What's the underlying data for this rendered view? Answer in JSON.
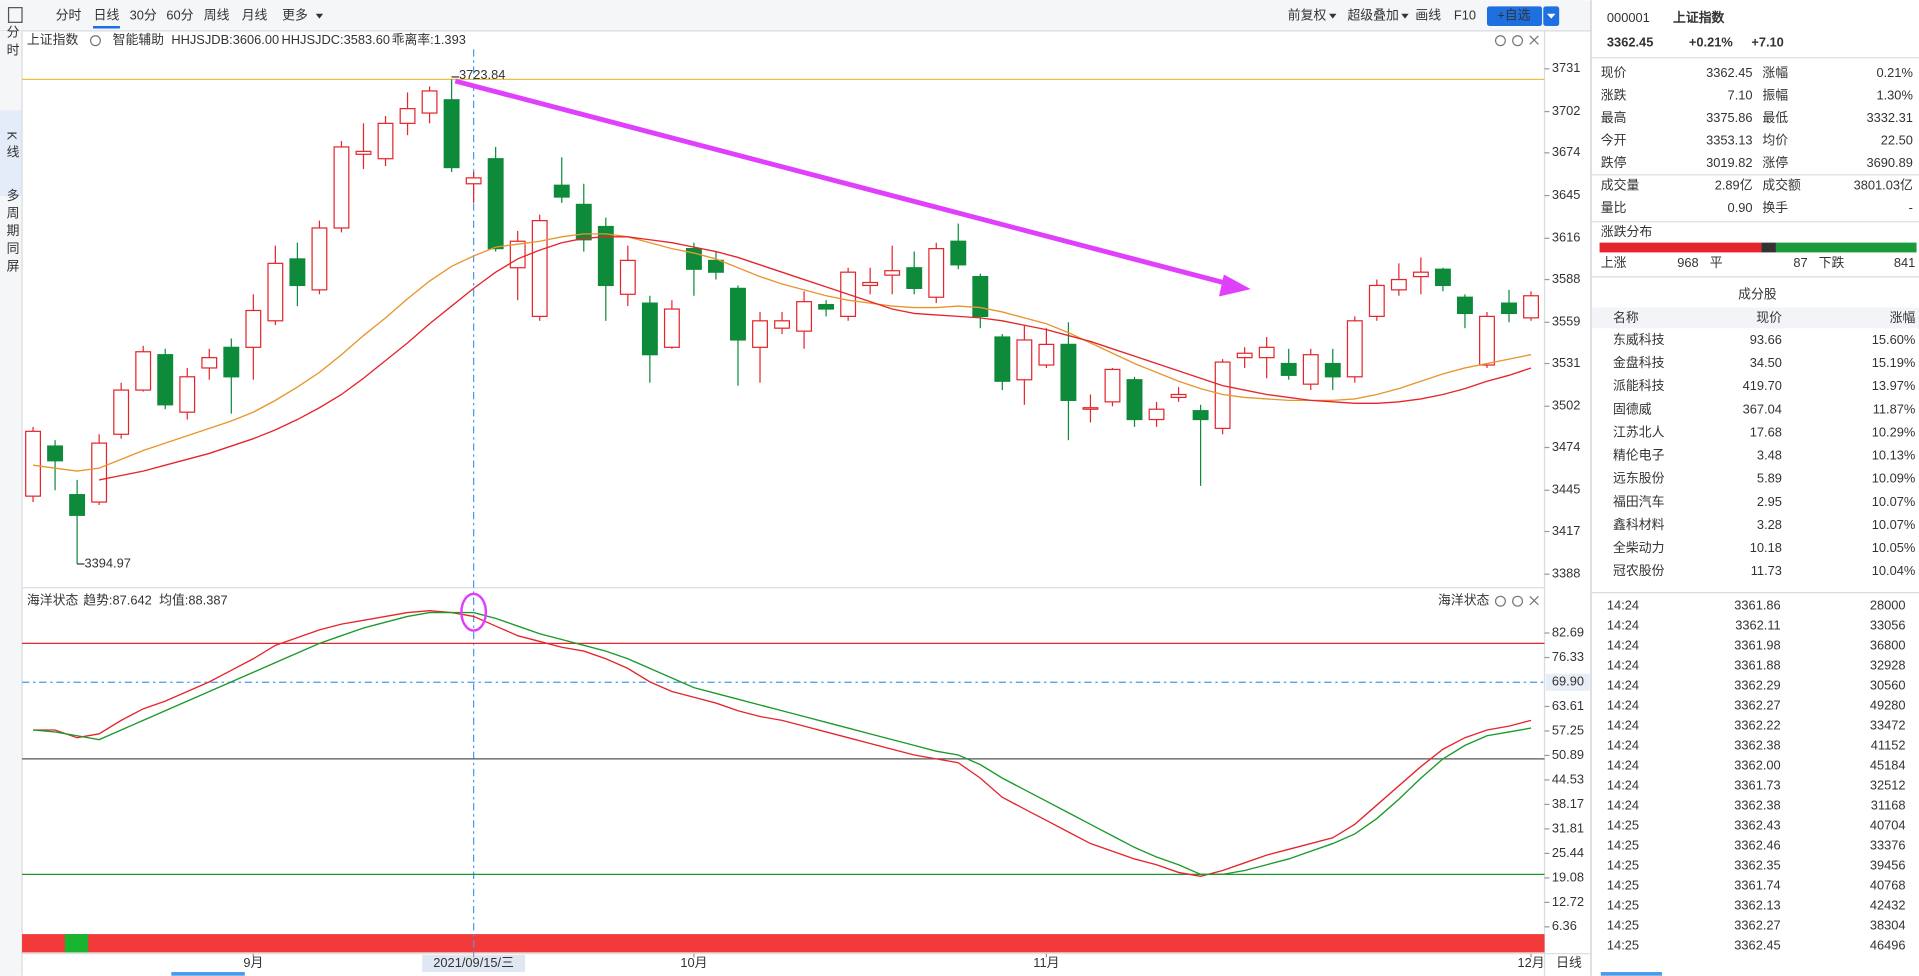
{
  "toolbar": {
    "left": [
      "分时",
      "日线",
      "30分",
      "60分",
      "周线",
      "月线",
      "更多"
    ],
    "right": [
      "前复权",
      "超级叠加",
      "画线",
      "F10"
    ],
    "add_button": "+自选"
  },
  "sidebar_tabs": [
    "分时",
    "K线",
    "多周期同屏"
  ],
  "chart_data": [
    {
      "type": "candlestick",
      "title": "上证指数",
      "subtitle": "智能辅助",
      "annotations": [
        "乖离率:1.393"
      ],
      "up_color": "#e4262c",
      "down_color": "#0d8a3a",
      "categories": [
        null,
        null,
        null,
        null,
        null,
        null,
        null,
        null,
        null,
        null,
        "9月",
        null,
        null,
        null,
        null,
        null,
        null,
        null,
        null,
        null,
        "2021/09/15/三",
        null,
        null,
        null,
        null,
        null,
        null,
        null,
        null,
        null,
        "10月",
        null,
        null,
        null,
        null,
        null,
        null,
        null,
        null,
        null,
        null,
        null,
        null,
        null,
        null,
        null,
        "11月",
        null,
        null,
        null,
        null,
        null,
        null,
        null,
        null,
        null,
        null,
        null,
        null,
        null,
        null,
        null,
        null,
        null,
        null,
        null,
        null,
        null,
        "12月"
      ],
      "open": [
        3441,
        3475,
        3442,
        3437,
        3483,
        3513,
        3537,
        3498,
        3528,
        3542,
        3542,
        3560,
        3602,
        3581,
        3623,
        3673,
        3670,
        3694,
        3701,
        3710,
        3653,
        3670,
        3596,
        3563,
        3652,
        3639,
        3624,
        3578,
        3572,
        3542,
        3609,
        3601,
        3582,
        3542,
        3555,
        3553,
        3571,
        3563,
        3584,
        3591,
        3596,
        3576,
        3614,
        3590,
        3549,
        3520,
        3530,
        3544,
        3500,
        3505,
        3520,
        3493,
        3508,
        3499,
        3487,
        3535,
        3535,
        3531,
        3517,
        3531,
        3522,
        3563,
        3581,
        3590,
        3595,
        3576,
        3530,
        3572,
        3562
      ],
      "high": [
        3488,
        3479,
        3452,
        3483,
        3518,
        3543,
        3541,
        3528,
        3541,
        3548,
        3578,
        3611,
        3613,
        3628,
        3682,
        3694,
        3699,
        3715,
        3719,
        3723.84,
        3661,
        3678,
        3621,
        3632,
        3671,
        3653,
        3630,
        3611,
        3577,
        3574,
        3613,
        3607,
        3584,
        3566,
        3566,
        3580,
        3574,
        3596,
        3596,
        3611,
        3607,
        3613,
        3626,
        3592,
        3551,
        3557,
        3555,
        3559,
        3510,
        3528,
        3522,
        3505,
        3515,
        3503,
        3534,
        3542,
        3549,
        3541,
        3541,
        3541,
        3563,
        3588,
        3599,
        3603,
        3596,
        3578,
        3566,
        3581,
        3580
      ],
      "low": [
        3437,
        3445,
        3394.97,
        3435,
        3480,
        3512,
        3500,
        3493,
        3520,
        3497,
        3520,
        3557,
        3570,
        3578,
        3620,
        3663,
        3665,
        3686,
        3694,
        3661,
        3640,
        3607,
        3574,
        3560,
        3640,
        3607,
        3560,
        3570,
        3518,
        3541,
        3577,
        3588,
        3516,
        3518,
        3551,
        3541,
        3563,
        3560,
        3578,
        3578,
        3578,
        3572,
        3595,
        3555,
        3513,
        3503,
        3528,
        3479,
        3491,
        3502,
        3488,
        3488,
        3505,
        3448,
        3483,
        3528,
        3521,
        3520,
        3513,
        3513,
        3518,
        3560,
        3577,
        3578,
        3580,
        3555,
        3528,
        3559,
        3560
      ],
      "close": [
        3485,
        3465,
        3428,
        3477,
        3513,
        3539,
        3503,
        3522,
        3535,
        3522,
        3567,
        3599,
        3584,
        3623,
        3678,
        3675,
        3694,
        3704,
        3716,
        3664,
        3657,
        3609,
        3614,
        3628,
        3644,
        3615,
        3584,
        3601,
        3537,
        3568,
        3595,
        3593,
        3547,
        3560,
        3560,
        3573,
        3568,
        3593,
        3586,
        3594,
        3582,
        3609,
        3598,
        3563,
        3519,
        3547,
        3544,
        3506,
        3501,
        3527,
        3493,
        3500,
        3510,
        3493,
        3532,
        3538,
        3542,
        3523,
        3537,
        3522,
        3560,
        3584,
        3588,
        3593,
        3584,
        3565,
        3563,
        3565,
        3577
      ],
      "series": [
        {
          "name": "HHJSJDB:3606.00",
          "color": "#e8952e",
          "values": [
            3462,
            3460,
            3458,
            3460,
            3466,
            3472,
            3477,
            3482,
            3487,
            3492,
            3498,
            3506,
            3515,
            3525,
            3537,
            3550,
            3562,
            3575,
            3587,
            3597,
            3604,
            3610,
            3612,
            3614,
            3617,
            3619,
            3619,
            3617,
            3613,
            3609,
            3606,
            3602,
            3596,
            3590,
            3585,
            3581,
            3577,
            3574,
            3572,
            3570,
            3569,
            3569,
            3570,
            3569,
            3566,
            3562,
            3558,
            3552,
            3545,
            3538,
            3531,
            3525,
            3519,
            3514,
            3510,
            3508,
            3507,
            3506,
            3506,
            3506,
            3507,
            3510,
            3514,
            3519,
            3524,
            3528,
            3531,
            3534,
            3537
          ]
        },
        {
          "name": "HHJSJDC:3583.60",
          "color": "#e4262c",
          "values": [
            null,
            null,
            null,
            3452,
            3455,
            3458,
            3462,
            3466,
            3470,
            3475,
            3480,
            3486,
            3493,
            3501,
            3510,
            3521,
            3533,
            3545,
            3558,
            3570,
            3582,
            3593,
            3602,
            3608,
            3613,
            3616,
            3617,
            3617,
            3615,
            3613,
            3610,
            3607,
            3603,
            3598,
            3593,
            3588,
            3583,
            3578,
            3573,
            3568,
            3565,
            3564,
            3563,
            3562,
            3560,
            3557,
            3554,
            3550,
            3546,
            3541,
            3536,
            3531,
            3526,
            3521,
            3516,
            3513,
            3510,
            3508,
            3506,
            3505,
            3504,
            3504,
            3505,
            3507,
            3510,
            3514,
            3519,
            3523,
            3528
          ]
        }
      ],
      "high_line_color": "#e8c04a",
      "ylim": [
        3380.5,
        3744.3
      ],
      "yticks": [
        3731,
        3702,
        3674,
        3645,
        3616,
        3588,
        3559,
        3531,
        3502,
        3474,
        3445,
        3417,
        3388
      ],
      "x_axis_label": "日线"
    },
    {
      "type": "line",
      "title": "海洋状态",
      "series": [
        {
          "name": "趋势:87.642",
          "color": "#e4262c",
          "values": [
            57.5,
            57.5,
            55.5,
            56.5,
            60,
            63,
            65,
            67.5,
            70,
            73,
            76,
            79.5,
            81.5,
            83.5,
            85,
            86,
            87,
            88,
            88.5,
            88,
            87,
            84.5,
            82,
            80.5,
            79,
            78,
            76,
            73.5,
            70,
            67.5,
            66,
            64.5,
            62.5,
            61,
            60,
            58.5,
            57,
            55.5,
            54,
            52.5,
            51,
            50,
            49,
            45,
            40,
            37,
            34,
            31,
            28,
            26,
            24,
            22.5,
            20.5,
            19.5,
            21,
            23,
            25,
            26.5,
            28,
            29.5,
            33,
            38,
            43,
            48,
            52.5,
            55.5,
            57.5,
            58.5,
            60
          ]
        },
        {
          "name": "均值:88.387",
          "color": "#1a9a2a",
          "values": [
            57.5,
            57,
            56,
            55,
            57.5,
            60,
            62.5,
            65,
            67.5,
            70,
            72.5,
            75,
            77.5,
            80,
            82,
            84,
            85.5,
            87,
            88,
            88,
            88,
            86.5,
            84.5,
            82.5,
            81,
            79.5,
            78,
            76,
            73.5,
            71,
            68.5,
            67,
            65.5,
            64,
            62.5,
            61,
            59.5,
            58,
            56.5,
            55,
            53.5,
            52,
            51,
            48.5,
            45,
            42,
            39,
            36,
            33,
            30,
            27,
            24.5,
            22.5,
            20,
            20,
            21,
            22.5,
            24,
            26,
            28,
            30.5,
            34.5,
            39.5,
            45,
            50,
            53.5,
            56,
            57,
            58
          ]
        }
      ],
      "ref_lines": [
        {
          "value": 80,
          "color": "#e4262c"
        },
        {
          "value": 69.9,
          "label": "69.90",
          "color": "#4a9be8",
          "dashed": true
        },
        {
          "value": 50,
          "color": "#555555"
        },
        {
          "value": 20,
          "color": "#1a9a2a"
        }
      ],
      "ylim": [
        4.8,
        93.5
      ],
      "yticks": [
        82.69,
        76.33,
        63.61,
        57.25,
        50.89,
        44.53,
        38.17,
        31.81,
        25.44,
        19.08,
        12.72,
        6.36
      ]
    }
  ],
  "quote": {
    "code": "000001",
    "name": "上证指数",
    "price": "3362.45",
    "pct": "+0.21%",
    "change": "+7.10",
    "color": "#e4262c",
    "rows": [
      {
        "cells": [
          "现价",
          "3362.45",
          "涨幅",
          "0.21%"
        ],
        "colors": [
          "#e4262c",
          "#e4262c"
        ]
      },
      {
        "cells": [
          "涨跌",
          "7.10",
          "振幅",
          "1.30%"
        ],
        "colors": [
          "#e4262c",
          "#222222"
        ]
      },
      {
        "cells": [
          "最高",
          "3375.86",
          "最低",
          "3332.31"
        ],
        "colors": [
          "#e4262c",
          "#0d8a3a"
        ]
      },
      {
        "cells": [
          "今开",
          "3353.13",
          "均价",
          "22.50"
        ],
        "colors": [
          "#0d8a3a",
          "#0d8a3a"
        ]
      },
      {
        "cells": [
          "跌停",
          "3019.82",
          "涨停",
          "3690.89"
        ],
        "colors": [
          "#0d8a3a",
          "#e4262c"
        ]
      },
      {
        "cells": [
          "成交量",
          "2.89亿",
          "成交额",
          "3801.03亿"
        ],
        "colors": [
          "#222222",
          "#222222"
        ]
      },
      {
        "cells": [
          "量比",
          "0.90",
          "换手",
          "-"
        ],
        "colors": [
          "#222222",
          "#222222"
        ]
      }
    ]
  },
  "distribution": {
    "title": "涨跌分布",
    "up_label": "上涨",
    "up": 968,
    "flat_label": "平",
    "flat": 87,
    "down_label": "下跌",
    "down": 841
  },
  "constituents": {
    "title": "成分股",
    "header": [
      "名称",
      "现价",
      "涨幅"
    ],
    "rows": [
      {
        "cells": [
          "东威科技",
          "93.66",
          "15.60%"
        ],
        "name_color": "#222222"
      },
      {
        "cells": [
          "金盘科技",
          "34.50",
          "15.19%"
        ],
        "name_color": "#222222"
      },
      {
        "cells": [
          "派能科技",
          "419.70",
          "13.97%"
        ],
        "name_color": "#e4262c"
      },
      {
        "cells": [
          "固德威",
          "367.04",
          "11.87%"
        ],
        "name_color": "#e4262c"
      },
      {
        "cells": [
          "江苏北人",
          "17.68",
          "10.29%"
        ],
        "name_color": "#222222"
      },
      {
        "cells": [
          "精伦电子",
          "3.48",
          "10.13%"
        ],
        "name_color": "#222222"
      },
      {
        "cells": [
          "远东股份",
          "5.89",
          "10.09%"
        ],
        "name_color": "#222222"
      },
      {
        "cells": [
          "福田汽车",
          "2.95",
          "10.07%"
        ],
        "name_color": "#e4262c"
      },
      {
        "cells": [
          "鑫科材料",
          "3.28",
          "10.07%"
        ],
        "name_color": "#e4262c"
      },
      {
        "cells": [
          "全柴动力",
          "10.18",
          "10.05%"
        ],
        "name_color": "#222222"
      },
      {
        "cells": [
          "冠农股份",
          "11.73",
          "10.04%"
        ],
        "name_color": "#222222"
      }
    ]
  },
  "trades": [
    [
      "14:24",
      "3361.86",
      "28000"
    ],
    [
      "14:24",
      "3362.11",
      "33056"
    ],
    [
      "14:24",
      "3361.98",
      "36800"
    ],
    [
      "14:24",
      "3361.88",
      "32928"
    ],
    [
      "14:24",
      "3362.29",
      "30560"
    ],
    [
      "14:24",
      "3362.27",
      "49280"
    ],
    [
      "14:24",
      "3362.22",
      "33472"
    ],
    [
      "14:24",
      "3362.38",
      "41152"
    ],
    [
      "14:24",
      "3362.00",
      "45184"
    ],
    [
      "14:24",
      "3361.73",
      "32512"
    ],
    [
      "14:24",
      "3362.38",
      "31168"
    ],
    [
      "14:25",
      "3362.43",
      "40704"
    ],
    [
      "14:25",
      "3362.46",
      "33376"
    ],
    [
      "14:25",
      "3362.35",
      "39456"
    ],
    [
      "14:25",
      "3361.74",
      "40768"
    ],
    [
      "14:25",
      "3362.13",
      "42432"
    ],
    [
      "14:25",
      "3362.27",
      "38304"
    ],
    [
      "14:25",
      "3362.45",
      "46496"
    ]
  ]
}
